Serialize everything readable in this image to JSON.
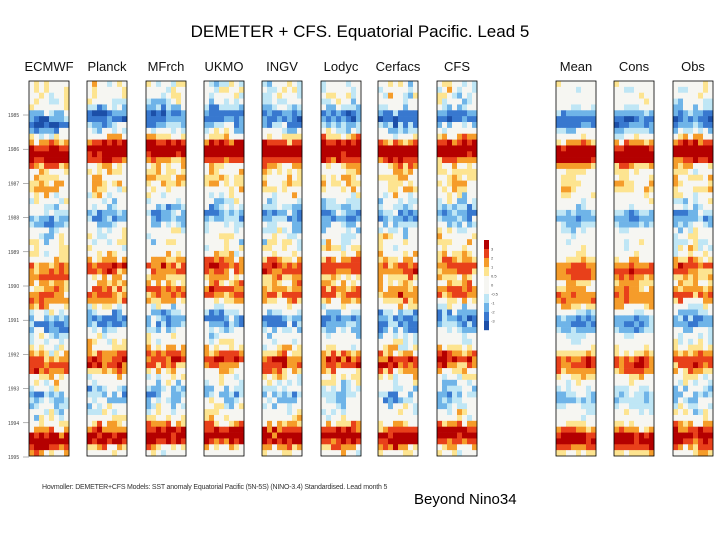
{
  "title": "DEMETER + CFS. Equatorial Pacific. Lead 5",
  "subtitle": "Beyond Nino34",
  "caption": "Hovmoller: DEMETER+CFS Models: SST anomaly Equatorial Pacific (5N-5S) (NINO-3.4) Standardised. Lead month 5",
  "chart_data": {
    "type": "heatmap",
    "title": "DEMETER + CFS. Equatorial Pacific. Lead 5",
    "panels": [
      {
        "name": "ECMWF"
      },
      {
        "name": "Planck"
      },
      {
        "name": "MFrch"
      },
      {
        "name": "UKMO"
      },
      {
        "name": "INGV"
      },
      {
        "name": "Lodyc"
      },
      {
        "name": "Cerfacs"
      },
      {
        "name": "CFS"
      },
      {
        "name": "Mean"
      },
      {
        "name": "Cons"
      },
      {
        "name": "Obs"
      }
    ],
    "y_tick_labels": [
      "1985",
      "1986",
      "1987",
      "1988",
      "1989",
      "1990",
      "1991",
      "1992",
      "1993",
      "1994",
      "1995"
    ],
    "colorbar_ticks": [
      "3",
      "2",
      "1",
      "0.5",
      "0",
      "-0.5",
      "-1",
      "-2",
      "-3"
    ],
    "colors": {
      "warm_strong": "#b40000",
      "warm": "#e8401a",
      "warm_mid": "#f59c2a",
      "warm_light": "#fde490",
      "neutral": "#f6f6f2",
      "cool_light": "#bfe6f5",
      "cool_mid": "#6fb4e8",
      "cool": "#3878cf",
      "cool_strong": "#1c4fa8"
    },
    "event_profile": [
      {
        "y": 0.1,
        "v": -1.3
      },
      {
        "y": 0.19,
        "v": 2.6
      },
      {
        "y": 0.27,
        "v": 0.4
      },
      {
        "y": 0.36,
        "v": -0.9
      },
      {
        "y": 0.5,
        "v": 1.2
      },
      {
        "y": 0.57,
        "v": 1.0
      },
      {
        "y": 0.64,
        "v": -1.0
      },
      {
        "y": 0.75,
        "v": 1.4
      },
      {
        "y": 0.84,
        "v": -0.6
      },
      {
        "y": 0.95,
        "v": 2.1
      }
    ]
  }
}
